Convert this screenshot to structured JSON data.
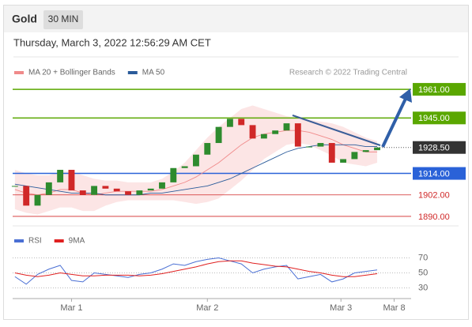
{
  "header": {
    "title": "Gold",
    "interval": "30 MIN",
    "date": "Thursday, March 3, 2022 12:56:29 AM CET",
    "credit": "Research © 2022 Trading Central"
  },
  "chart_data": [
    {
      "type": "candlestick",
      "x": [
        -5,
        -4,
        -3,
        -2,
        -1,
        0,
        1,
        2,
        3,
        4,
        5,
        6,
        7,
        8,
        9,
        10,
        11,
        12,
        13,
        14,
        15,
        16,
        17,
        18,
        19,
        20,
        21,
        22,
        23,
        24,
        25,
        26,
        27
      ],
      "values": [
        1907,
        1896,
        1902,
        1909,
        1916,
        1904.5,
        1902,
        1907,
        1905.5,
        1904,
        1902,
        1904.5,
        1905.5,
        1909,
        1917,
        1918,
        1924.5,
        1931,
        1940,
        1944.5,
        1941,
        1933.5,
        1936,
        1938,
        1942,
        1929,
        1929,
        1931,
        1920,
        1922,
        1926,
        1927,
        1928.5
      ],
      "up_color": "#2e8b2e",
      "down_color": "#d02828",
      "series": [
        {
          "name": "MA 20 + Bollinger Bands",
          "color": "#f08a8a",
          "values": [
            1905,
            1903,
            1902,
            1903,
            1905,
            1905,
            1903,
            1902,
            1903,
            1904,
            1904,
            1904,
            1904,
            1905,
            1907,
            1909,
            1912,
            1916,
            1920,
            1925,
            1930,
            1934,
            1936,
            1937,
            1938,
            1938,
            1937,
            1935,
            1933,
            1930,
            1928,
            1926,
            1926
          ],
          "upper": [
            1916,
            1914,
            1913,
            1913,
            1915,
            1915,
            1913,
            1911,
            1910,
            1910,
            1909,
            1909,
            1909,
            1911,
            1915,
            1920,
            1927,
            1934,
            1940,
            1945,
            1950,
            1952,
            1950,
            1948,
            1946,
            1945,
            1944,
            1943,
            1942,
            1940,
            1937,
            1934,
            1932
          ],
          "lower": [
            1894,
            1892,
            1891,
            1893,
            1895,
            1895,
            1893,
            1893,
            1896,
            1898,
            1899,
            1899,
            1899,
            1899,
            1899,
            1898,
            1897,
            1898,
            1900,
            1905,
            1910,
            1916,
            1922,
            1926,
            1930,
            1931,
            1930,
            1927,
            1924,
            1920,
            1919,
            1918,
            1920
          ]
        },
        {
          "name": "MA 50",
          "color": "#2a5b9a",
          "values": [
            1908,
            1907,
            1906,
            1905,
            1904,
            1903,
            1903,
            1903,
            1902,
            1902,
            1902,
            1902,
            1903,
            1903,
            1904,
            1905,
            1906,
            1907,
            1909,
            1911,
            1914,
            1917,
            1920,
            1923,
            1926,
            1928,
            1929,
            1930,
            1930,
            1930,
            1930,
            1929,
            1929
          ]
        }
      ],
      "levels": [
        {
          "value": 1961,
          "label": "1961.00",
          "color": "#5aa700",
          "style": "box"
        },
        {
          "value": 1945,
          "label": "1945.00",
          "color": "#5aa700",
          "style": "box"
        },
        {
          "value": 1928.5,
          "label": "1928.50",
          "color": "#333333",
          "style": "current"
        },
        {
          "value": 1914,
          "label": "1914.00",
          "color": "#2a62d8",
          "style": "box"
        },
        {
          "value": 1902,
          "label": "1902.00",
          "color": "#d02828",
          "style": "text"
        },
        {
          "value": 1890,
          "label": "1890.00",
          "color": "#d02828",
          "style": "text"
        }
      ],
      "xlim": [
        -5.2,
        30
      ],
      "ylim": [
        1885,
        1967
      ]
    },
    {
      "type": "line",
      "x": [
        -5,
        -4,
        -3,
        -2,
        -1,
        0,
        1,
        2,
        3,
        4,
        5,
        6,
        7,
        8,
        9,
        10,
        11,
        12,
        13,
        14,
        15,
        16,
        17,
        18,
        19,
        20,
        21,
        22,
        23,
        24,
        25,
        26,
        27
      ],
      "series": [
        {
          "name": "RSI",
          "color": "#4a6fd4",
          "values": [
            45,
            35,
            48,
            55,
            60,
            40,
            38,
            50,
            48,
            46,
            44,
            48,
            50,
            55,
            62,
            60,
            65,
            68,
            70,
            66,
            62,
            50,
            55,
            58,
            60,
            42,
            45,
            48,
            38,
            42,
            50,
            52,
            54
          ]
        },
        {
          "name": "9MA",
          "color": "#e02020",
          "values": [
            50,
            47,
            45,
            47,
            50,
            48,
            46,
            46,
            47,
            47,
            47,
            46,
            47,
            49,
            52,
            55,
            58,
            62,
            65,
            66,
            66,
            63,
            61,
            59,
            58,
            55,
            52,
            50,
            47,
            45,
            45,
            47,
            49
          ]
        }
      ],
      "xlim": [
        -5.2,
        30
      ],
      "ylim": [
        20,
        100
      ],
      "yticks": [
        70,
        50,
        30
      ],
      "xticks": [
        {
          "value": 0,
          "label": "Mar 1"
        },
        {
          "value": 12,
          "label": "Mar 2"
        },
        {
          "value": 23.8,
          "label": "Mar 3"
        },
        {
          "value": 28.5,
          "label": "Mar 8"
        }
      ]
    }
  ]
}
